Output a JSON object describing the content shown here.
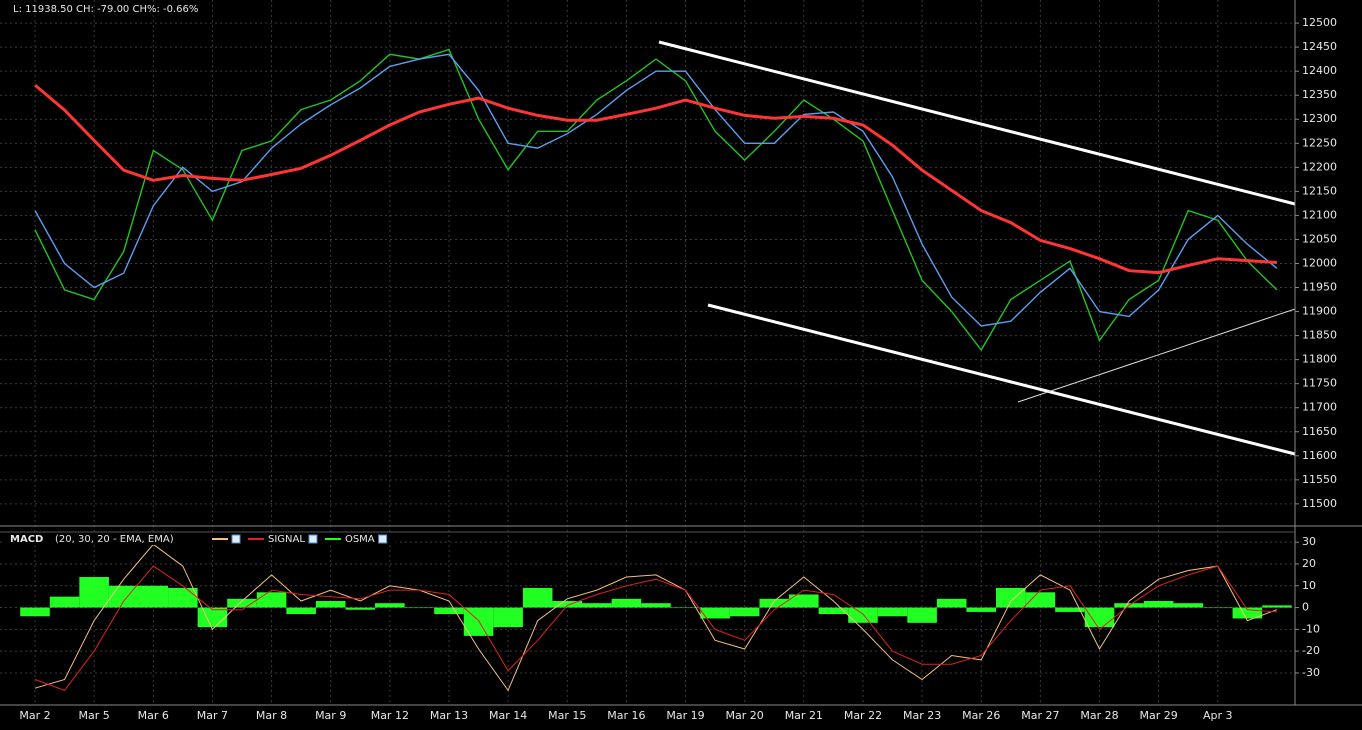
{
  "header": {
    "status": "L: 11938.50 CH: -79.00 CH%: -0.66%"
  },
  "chart_data": [
    {
      "type": "line",
      "categories": [
        "Mar 2",
        null,
        "Mar 5",
        null,
        "Mar 6",
        null,
        "Mar 7",
        null,
        "Mar 8",
        null,
        "Mar 9",
        null,
        "Mar 12",
        null,
        "Mar 13",
        null,
        "Mar 14",
        null,
        "Mar 15",
        null,
        "Mar 16",
        null,
        "Mar 19",
        null,
        "Mar 20",
        null,
        "Mar 21",
        null,
        "Mar 22",
        null,
        "Mar 23",
        null,
        "Mar 26",
        null,
        "Mar 27",
        null,
        "Mar 28",
        null,
        "Mar 29",
        null,
        "Apr 3",
        null,
        null
      ],
      "series": [
        {
          "color": "#22c322",
          "values": [
            12070,
            11945,
            11925,
            12025,
            12235,
            12195,
            12090,
            12235,
            12255,
            12320,
            12340,
            12380,
            12435,
            12425,
            12445,
            12300,
            12195,
            12275,
            12275,
            12340,
            12380,
            12425,
            12380,
            12275,
            12215,
            12275,
            12340,
            12300,
            12255,
            12110,
            11965,
            11900,
            11820,
            11925,
            11965,
            12005,
            11840,
            11925,
            11965,
            12110,
            12090,
            12005,
            11945
          ]
        },
        {
          "color": "#5a9ef0",
          "values": [
            12110,
            12000,
            11950,
            11980,
            12120,
            12200,
            12150,
            12170,
            12240,
            12290,
            12330,
            12365,
            12410,
            12425,
            12435,
            12360,
            12250,
            12240,
            12270,
            12310,
            12360,
            12400,
            12400,
            12320,
            12250,
            12250,
            12310,
            12315,
            12275,
            12180,
            12040,
            11930,
            11870,
            11880,
            11940,
            11990,
            11900,
            11890,
            11945,
            12050,
            12100,
            12040,
            11990
          ]
        },
        {
          "color": "#ff3535",
          "values": [
            12371,
            12319,
            12256,
            12194,
            12173,
            12183,
            12177,
            12173,
            12185,
            12198,
            12225,
            12256,
            12288,
            12315,
            12331,
            12344,
            12323,
            12308,
            12298,
            12298,
            12310,
            12323,
            12340,
            12323,
            12308,
            12302,
            12306,
            12302,
            12288,
            12246,
            12194,
            12152,
            12110,
            12085,
            12048,
            12031,
            12010,
            11985,
            11981,
            11996,
            12010,
            12006,
            12002
          ]
        }
      ],
      "ylim": [
        11454,
        12548
      ],
      "yticks": [
        11500,
        11550,
        11600,
        11650,
        11700,
        11750,
        11800,
        11850,
        11900,
        11950,
        12000,
        12050,
        12100,
        12150,
        12200,
        12250,
        12300,
        12350,
        12400,
        12450,
        12500
      ],
      "grid": true
    },
    {
      "type": "macd",
      "title": "MACD",
      "subtitle": "(20, 30, 20 - EMA, EMA)",
      "series": [
        {
          "color": "#f2c27e",
          "values": [
            -37,
            -33,
            -6,
            13,
            29,
            19,
            -10,
            3,
            15,
            3,
            8,
            3,
            10,
            8,
            3,
            -19,
            -38,
            -6,
            4,
            8,
            14,
            15,
            8,
            -15,
            -19,
            3,
            14,
            3,
            -10,
            -24,
            -33,
            -22,
            -24,
            3,
            15,
            8,
            -19,
            3,
            13,
            17,
            19,
            -6,
            -1
          ]
        },
        {
          "name": "SIGNAL",
          "color": "#e02020",
          "values": [
            -33,
            -38,
            -20,
            3,
            19,
            10,
            -1,
            -1,
            8,
            6,
            5,
            4,
            8,
            8,
            6,
            -6,
            -29,
            -15,
            1,
            6,
            10,
            13,
            8,
            -10,
            -15,
            -1,
            8,
            6,
            -3,
            -20,
            -26,
            -26,
            -22,
            -6,
            8,
            10,
            -10,
            1,
            10,
            15,
            19,
            -1,
            -2
          ]
        },
        {
          "name": "OSMA",
          "color": "#22ff22",
          "values": [
            -4,
            5,
            14,
            10,
            10,
            9,
            -9,
            4,
            7,
            -3,
            3,
            -1,
            2,
            0,
            -3,
            -13,
            -9,
            9,
            3,
            2,
            4,
            2,
            0,
            -5,
            -4,
            4,
            6,
            -3,
            -7,
            -4,
            -7,
            4,
            -2,
            9,
            7,
            -2,
            -9,
            2,
            3,
            2,
            0,
            -5,
            1
          ]
        }
      ],
      "ylim": [
        -44.7,
        34.2
      ],
      "yticks": [
        -30,
        -20,
        -10,
        0,
        10,
        20,
        30
      ],
      "grid": true
    }
  ]
}
